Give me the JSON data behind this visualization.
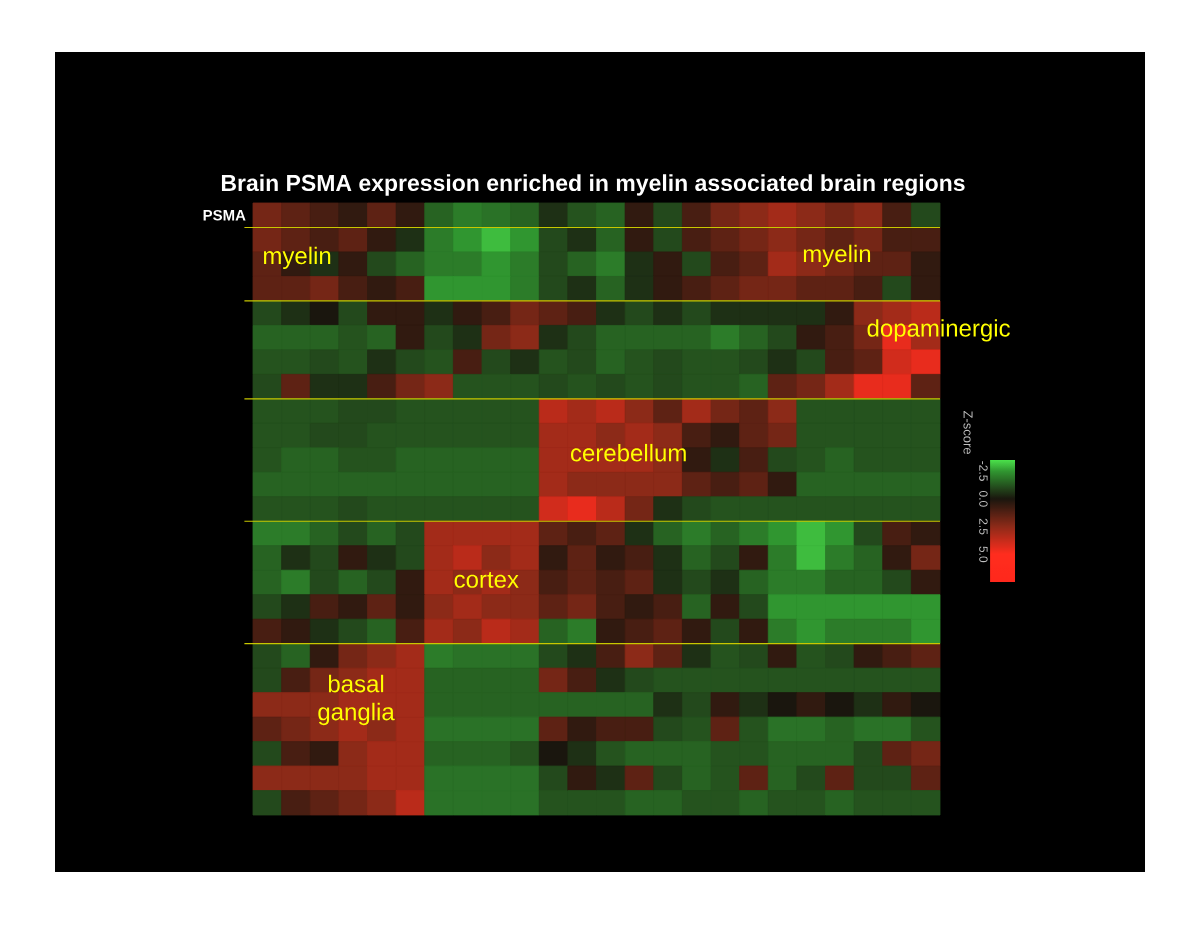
{
  "chart_data": {
    "type": "heatmap",
    "title": "Brain PSMA expression enriched in myelin associated brain regions",
    "clabel": "Z-score",
    "categories": [
      null,
      null,
      null,
      null,
      null,
      null,
      null,
      null,
      null,
      null,
      null,
      null,
      null,
      null,
      null,
      null,
      null,
      null,
      null,
      null,
      null,
      null,
      null,
      null
    ],
    "y_categories": [
      "PSMA",
      null,
      null,
      null,
      null,
      null,
      null,
      null,
      null,
      null,
      null,
      null,
      null,
      null,
      null,
      null,
      null,
      null,
      null,
      null,
      null,
      null,
      null,
      null,
      null
    ],
    "cells": [
      [
        2,
        1.5,
        1,
        0.5,
        1.5,
        0.5,
        -1.5,
        -2,
        -1.8,
        -1.5,
        -0.5,
        -1.2,
        -1.5,
        0.5,
        -1,
        1,
        2,
        2.5,
        3,
        2.5,
        2,
        2.5,
        1,
        -1
      ],
      [
        2,
        1.5,
        1,
        1.5,
        0.5,
        -0.5,
        -2,
        -2.5,
        -3,
        -2.5,
        -1,
        -0.5,
        -1.5,
        0.5,
        -1,
        1,
        1.5,
        2,
        2.5,
        2,
        1.5,
        2,
        1,
        1
      ],
      [
        1.5,
        0.5,
        -0.5,
        0.5,
        -1,
        -1.5,
        -2,
        -2,
        -2.5,
        -2,
        -1,
        -1.5,
        -2,
        -0.5,
        0.5,
        -1,
        1,
        1.5,
        3,
        2.5,
        2,
        1.5,
        1.5,
        0.5
      ],
      [
        1.5,
        1.5,
        2,
        1,
        0.5,
        1,
        -2.5,
        -2.5,
        -2.5,
        -2,
        -1,
        -0.5,
        -1.5,
        -0.5,
        0.5,
        1,
        1.5,
        2,
        2,
        1.5,
        1.5,
        1,
        -1,
        0.5
      ],
      [
        -1,
        -0.5,
        0,
        -1,
        0.5,
        0.5,
        -0.5,
        0.5,
        1,
        2,
        1.5,
        1,
        -0.5,
        -1,
        -0.5,
        -1,
        -0.5,
        -0.5,
        -0.5,
        -0.5,
        0.5,
        2.5,
        3,
        3.5
      ],
      [
        -1.5,
        -1.5,
        -1.5,
        -1.2,
        -1.5,
        0.5,
        -1,
        -0.5,
        2,
        2.5,
        -0.5,
        -1,
        -1.5,
        -1.5,
        -1.5,
        -1.5,
        -2,
        -1.5,
        -1,
        0.5,
        1,
        2,
        4.5,
        3
      ],
      [
        -1.2,
        -1.2,
        -1,
        -1.2,
        -0.5,
        -1,
        -1.2,
        1,
        -1,
        -0.5,
        -1.2,
        -1,
        -1.5,
        -1.2,
        -1,
        -1.2,
        -1.2,
        -1,
        -0.5,
        -1,
        1,
        1.5,
        4,
        4.5
      ],
      [
        -1,
        1.5,
        -0.5,
        -0.5,
        1,
        2,
        2.5,
        -1.2,
        -1.2,
        -1.2,
        -1,
        -1.2,
        -1,
        -1.2,
        -1,
        -1.2,
        -1.2,
        -1.5,
        1.5,
        2,
        3,
        4.5,
        4.5,
        1.5
      ],
      [
        -1.2,
        -1.2,
        -1.2,
        -1,
        -1,
        -1.2,
        -1.2,
        -1.2,
        -1.2,
        -1.2,
        3.5,
        3,
        3.5,
        2.5,
        1.5,
        3,
        2,
        1.5,
        2.5,
        -1.2,
        -1.2,
        -1.2,
        -1.2,
        -1.2
      ],
      [
        -1.2,
        -1.2,
        -1,
        -1,
        -1.2,
        -1.2,
        -1.2,
        -1.2,
        -1.2,
        -1.2,
        3,
        3,
        2.5,
        3,
        2.5,
        1,
        0.5,
        1.5,
        2,
        -1.2,
        -1.2,
        -1.2,
        -1.2,
        -1.2
      ],
      [
        -1.2,
        -1.5,
        -1.5,
        -1.2,
        -1.2,
        -1.5,
        -1.5,
        -1.5,
        -1.5,
        -1.5,
        3,
        3,
        3,
        3,
        2.5,
        0.5,
        -0.5,
        1,
        -1,
        -1.2,
        -1.5,
        -1.2,
        -1.2,
        -1.2
      ],
      [
        -1.5,
        -1.5,
        -1.5,
        -1.5,
        -1.5,
        -1.5,
        -1.5,
        -1.5,
        -1.5,
        -1.5,
        3,
        2.5,
        2.5,
        2.5,
        2.5,
        1.5,
        1,
        1.5,
        0.5,
        -1.5,
        -1.5,
        -1.5,
        -1.5,
        -1.5
      ],
      [
        -1.2,
        -1.2,
        -1.2,
        -1,
        -1.2,
        -1.2,
        -1.2,
        -1.2,
        -1.2,
        -1.2,
        4,
        4.5,
        3.5,
        2,
        -0.5,
        -1,
        -1.2,
        -1.2,
        -1.2,
        -1.2,
        -1.2,
        -1.2,
        -1.2,
        -1.2
      ],
      [
        -2,
        -2,
        -1.5,
        -1,
        -1.5,
        -1,
        3,
        3,
        3,
        3,
        1.5,
        1,
        1.5,
        -0.5,
        -1.5,
        -2,
        -1.5,
        -2,
        -2.5,
        -3,
        -2.5,
        -1,
        1,
        0.5
      ],
      [
        -1.5,
        -0.5,
        -1,
        0.5,
        -0.5,
        -1,
        3,
        3.5,
        2.5,
        3,
        0.5,
        1.5,
        0.5,
        1,
        -0.5,
        -1.5,
        -1,
        0.5,
        -2,
        -3,
        -2,
        -1.5,
        0.5,
        2
      ],
      [
        -1.5,
        -2,
        -1,
        -1.5,
        -1,
        0.5,
        3,
        2.5,
        3,
        2.5,
        1,
        1.5,
        1,
        1.5,
        -0.5,
        -1,
        -0.5,
        -1.5,
        -2,
        -2,
        -1.5,
        -1.5,
        -1,
        0.5
      ],
      [
        -1,
        -0.5,
        1,
        0.5,
        1.5,
        0.5,
        2.5,
        3,
        2.5,
        2.5,
        1.5,
        2,
        1,
        0.5,
        1,
        -1.5,
        0.5,
        -1,
        -2.5,
        -2.5,
        -2.5,
        -2.5,
        -2.5,
        -2.5
      ],
      [
        1,
        0.5,
        -0.5,
        -1,
        -1.5,
        1,
        3,
        2.5,
        3.5,
        3,
        -1.5,
        -2,
        0.5,
        1,
        1.5,
        0.5,
        -1,
        0.5,
        -2,
        -2.5,
        -2,
        -2,
        -2,
        -2.5
      ],
      [
        -1,
        -1.5,
        0.5,
        2,
        2.5,
        3,
        -2,
        -1.8,
        -1.8,
        -1.8,
        -1,
        -0.5,
        1,
        2.5,
        1.5,
        -0.5,
        -1.2,
        -1,
        0.5,
        -1.2,
        -1,
        0.5,
        1,
        1.5
      ],
      [
        -1,
        1,
        2,
        2.5,
        3,
        3,
        -1.5,
        -1.5,
        -1.5,
        -1.5,
        2,
        1,
        -0.5,
        -1,
        -1.2,
        -1.2,
        -1.2,
        -1.2,
        -1.2,
        -1.2,
        -1.2,
        -1.2,
        -1.2,
        -1.2
      ],
      [
        2.5,
        2.5,
        2.5,
        3,
        3,
        3,
        -1.5,
        -1.5,
        -1.5,
        -1.5,
        -1.5,
        -1.5,
        -1.5,
        -1.5,
        -0.5,
        -1,
        0.5,
        -0.5,
        0,
        0.5,
        0,
        -0.5,
        0.5,
        0
      ],
      [
        1.5,
        2,
        2.5,
        3,
        2.5,
        3,
        -1.8,
        -1.8,
        -1.8,
        -1.8,
        1.5,
        0.5,
        1,
        1,
        -1,
        -1.2,
        1.5,
        -1.2,
        -1.8,
        -1.8,
        -1.5,
        -1.8,
        -1.8,
        -1.2
      ],
      [
        -1,
        1,
        0.5,
        2.5,
        3,
        3,
        -1.5,
        -1.5,
        -1.5,
        -1.2,
        0,
        -0.5,
        -1.2,
        -1.5,
        -1.5,
        -1.5,
        -1.2,
        -1.2,
        -1.5,
        -1.5,
        -1.5,
        -1,
        1.5,
        2
      ],
      [
        2.5,
        2.5,
        2.5,
        2.5,
        3,
        3,
        -1.8,
        -1.8,
        -1.8,
        -1.8,
        -1,
        0.5,
        -0.5,
        1.5,
        -1,
        -1.5,
        -1.2,
        1.5,
        -1.5,
        -1,
        1.5,
        -1,
        -1,
        1.5
      ],
      [
        -1,
        1,
        1.5,
        2,
        2.5,
        3.5,
        -1.8,
        -1.8,
        -1.8,
        -1.8,
        -1.2,
        -1.2,
        -1.2,
        -1.5,
        -1.5,
        -1.2,
        -1.2,
        -1.5,
        -1.2,
        -1.2,
        -1.5,
        -1.2,
        -1.2,
        -1.2
      ]
    ],
    "clim": [
      -3.5,
      7.5
    ],
    "cticks": [
      {
        "value": -2.5,
        "label": "-2.5"
      },
      {
        "value": 0,
        "label": "0.0"
      },
      {
        "value": 2.5,
        "label": "2.5"
      },
      {
        "value": 5,
        "label": "5.0"
      }
    ],
    "annotations": [
      "myelin",
      "myelin",
      "dopaminergic",
      "cerebellum",
      "cortex",
      "basal ganglia"
    ]
  }
}
